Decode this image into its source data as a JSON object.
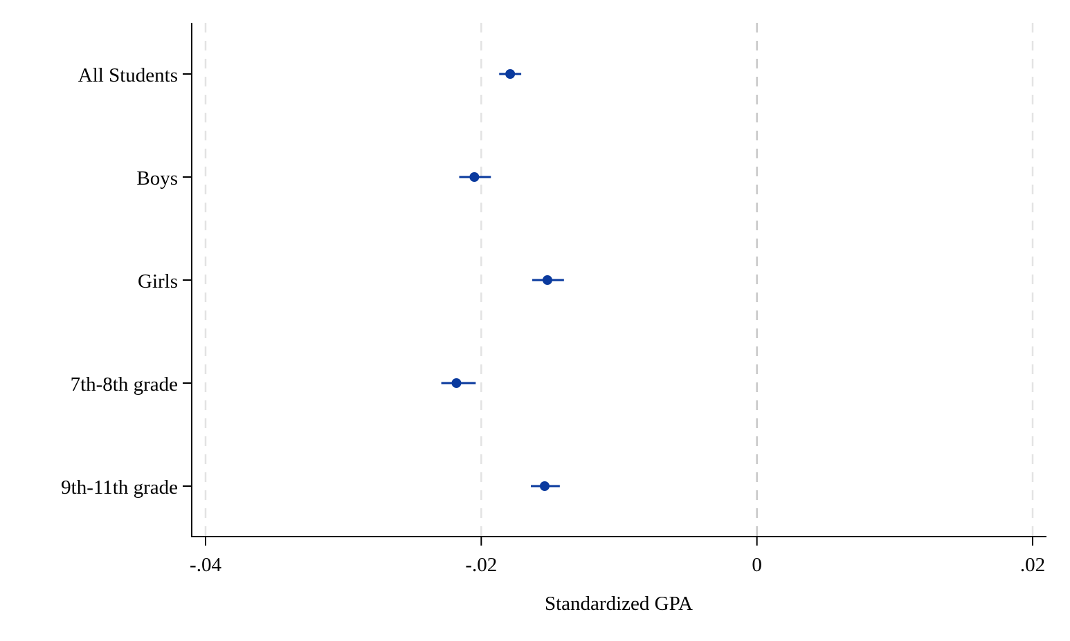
{
  "chart_data": {
    "type": "scatter",
    "title": "",
    "xlabel": "Standardized GPA",
    "ylabel": "",
    "xlim": [
      -0.04,
      0.02
    ],
    "x_ticks": [
      {
        "value": -0.04,
        "label": "-.04"
      },
      {
        "value": -0.02,
        "label": "-.02"
      },
      {
        "value": 0,
        "label": "0"
      },
      {
        "value": 0.02,
        "label": ".02"
      }
    ],
    "grid": true,
    "reference_line_x": 0,
    "categories": [
      "All Students",
      "Boys",
      "Girls",
      "7th-8th grade",
      "9th-11th grade"
    ],
    "series": [
      {
        "estimate": [
          -0.0179,
          -0.0205,
          -0.0152,
          -0.0218,
          -0.0154
        ],
        "ci_lower": [
          -0.0187,
          -0.0216,
          -0.0163,
          -0.0229,
          -0.0164
        ],
        "ci_upper": [
          -0.0171,
          -0.0193,
          -0.014,
          -0.0204,
          -0.0143
        ]
      }
    ],
    "colors": {
      "marker": "#0a3a9e",
      "grid": "#e3e3e3",
      "reference": "#c8c8c8"
    }
  }
}
